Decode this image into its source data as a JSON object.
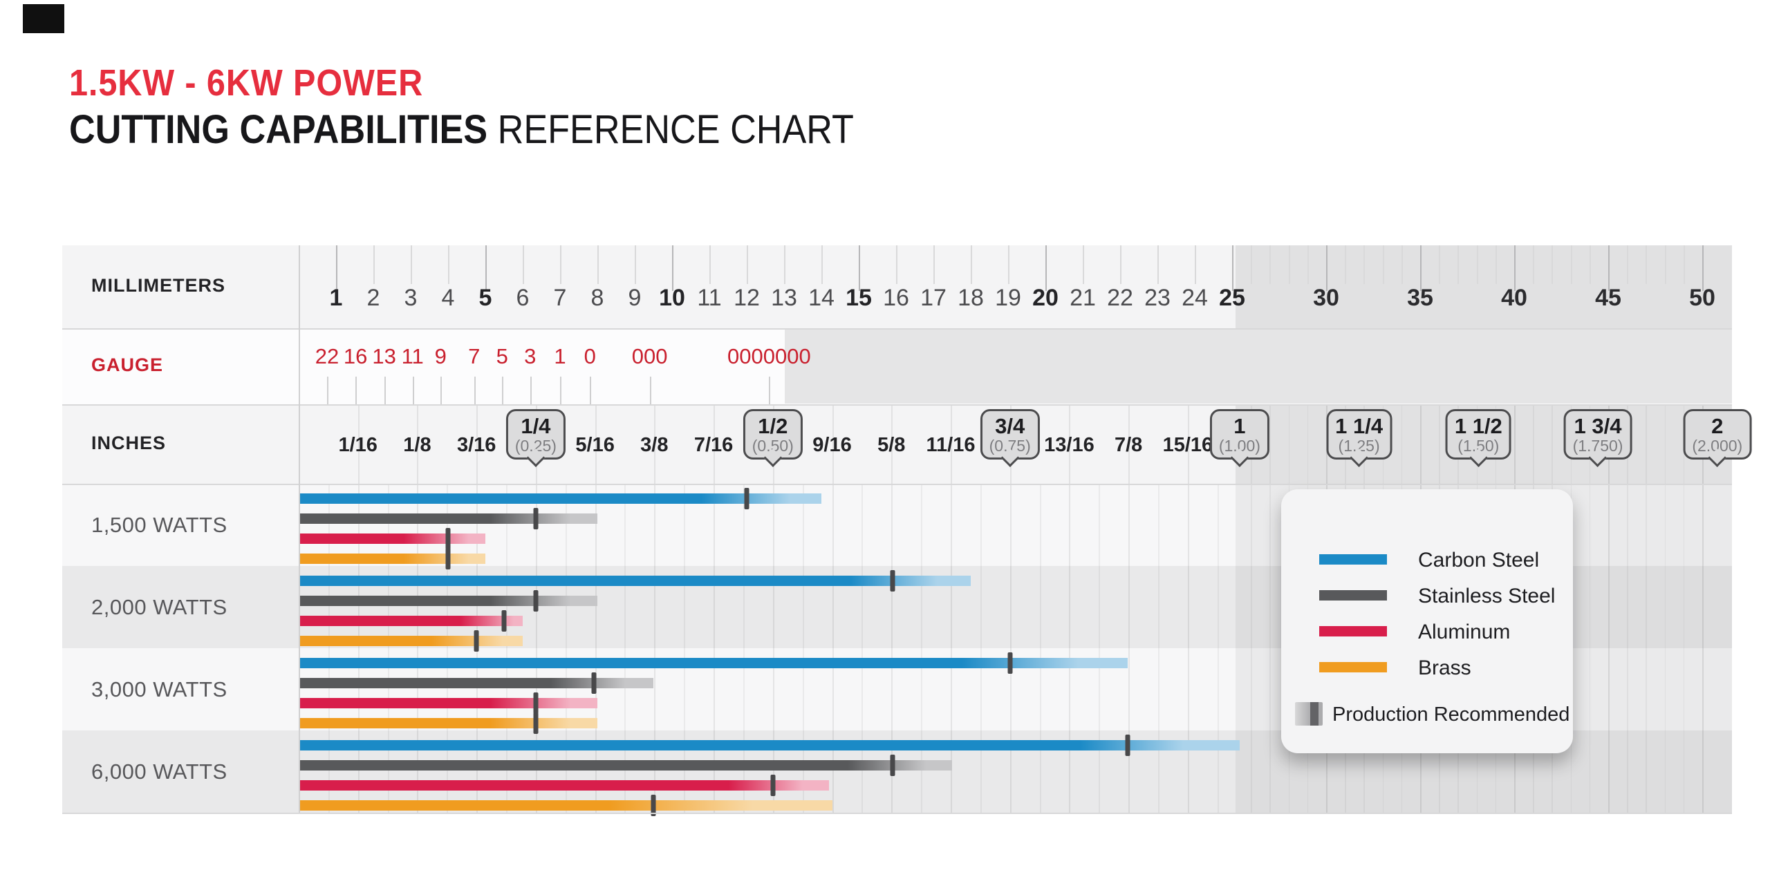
{
  "page": {
    "title_line1": "1.5KW - 6KW POWER",
    "title_line2_bold": "CUTTING CAPABILITIES",
    "title_line2_rest": " REFERENCE CHART"
  },
  "colors": {
    "title_red": "#e62e3e",
    "gauge_red": "#c9202e",
    "tick_dark": "#48484a",
    "carbon_steel": "#1b8ac6",
    "carbon_steel_light": "#abd3eb",
    "stainless_steel": "#58595b",
    "stainless_steel_light": "#c6c6c8",
    "aluminum": "#d81e4b",
    "aluminum_light": "#f3b3c4",
    "brass": "#f09c20",
    "brass_light": "#f8d9a6"
  },
  "header": {
    "millimeters": "MILLIMETERS",
    "gauge": "GAUGE",
    "inches": "INCHES"
  },
  "axis": {
    "mm_labels": [
      1,
      2,
      3,
      4,
      5,
      6,
      7,
      8,
      9,
      10,
      11,
      12,
      13,
      14,
      15,
      16,
      17,
      18,
      19,
      20,
      21,
      22,
      23,
      24,
      25,
      30,
      35,
      40,
      45,
      50
    ],
    "mm_bold": [
      1,
      5,
      10,
      15,
      20,
      25
    ],
    "mm_semi": [
      30,
      35,
      40,
      45,
      50
    ],
    "mm_compressed_after": 25,
    "gauge_items": [
      {
        "label": "22",
        "mm": 0.76
      },
      {
        "label": "16",
        "mm": 1.52
      },
      {
        "label": "13",
        "mm": 2.29
      },
      {
        "label": "11",
        "mm": 3.05
      },
      {
        "label": "9",
        "mm": 3.8
      },
      {
        "label": "7",
        "mm": 4.7
      },
      {
        "label": "5",
        "mm": 5.45
      },
      {
        "label": "3",
        "mm": 6.2
      },
      {
        "label": "1",
        "mm": 7.0
      },
      {
        "label": "0",
        "mm": 7.8
      },
      {
        "label": "000",
        "mm": 9.4
      },
      {
        "label": "0000000",
        "mm": 12.6
      }
    ],
    "inch_plain_labels": [
      {
        "n": 1,
        "label": "1/16"
      },
      {
        "n": 2,
        "label": "1/8"
      },
      {
        "n": 3,
        "label": "3/16"
      },
      {
        "n": 5,
        "label": "5/16"
      },
      {
        "n": 6,
        "label": "3/8"
      },
      {
        "n": 7,
        "label": "7/16"
      },
      {
        "n": 9,
        "label": "9/16"
      },
      {
        "n": 10,
        "label": "5/8"
      },
      {
        "n": 11,
        "label": "11/16"
      },
      {
        "n": 13,
        "label": "13/16"
      },
      {
        "n": 14,
        "label": "7/8"
      },
      {
        "n": 15,
        "label": "15/16"
      }
    ],
    "inch_callouts": [
      {
        "n": 4,
        "label": "1/4",
        "decimal": "(0.25)"
      },
      {
        "n": 8,
        "label": "1/2",
        "decimal": "(0.50)"
      },
      {
        "n": 12,
        "label": "3/4",
        "decimal": "(0.75)"
      },
      {
        "n": 16,
        "label": "1",
        "decimal": "(1.00)"
      },
      {
        "n": 20,
        "label": "1 1/4",
        "decimal": "(1.25)"
      },
      {
        "n": 24,
        "label": "1 1/2",
        "decimal": "(1.50)"
      },
      {
        "n": 28,
        "label": "1 3/4",
        "decimal": "(1.750)"
      },
      {
        "n": 32,
        "label": "2",
        "decimal": "(2.000)"
      }
    ]
  },
  "legend": {
    "items": [
      {
        "label": "Carbon Steel",
        "color": "#1b8ac6"
      },
      {
        "label": "Stainless Steel",
        "color": "#58595b"
      },
      {
        "label": "Aluminum",
        "color": "#d81e4b"
      },
      {
        "label": "Brass",
        "color": "#f09c20"
      }
    ],
    "production_label": "Production Recommended"
  },
  "chart_data": {
    "type": "bar",
    "orientation": "horizontal",
    "unit": "mm",
    "title": "1.5KW - 6KW POWER CUTTING CAPABILITIES REFERENCE CHART",
    "x_axis": {
      "mm_range": [
        0,
        50
      ],
      "linear_until_mm": 25,
      "note": "scale compressed beyond 25 mm"
    },
    "categories": [
      "1,500 WATTS",
      "2,000 WATTS",
      "3,000 WATTS",
      "6,000 WATTS"
    ],
    "series": [
      {
        "name": "Carbon Steel",
        "color": "#1b8ac6",
        "light": "#abd3eb",
        "bars": [
          {
            "production_mm": 12,
            "max_mm": 14
          },
          {
            "production_mm": 15.9,
            "max_mm": 18
          },
          {
            "production_mm": 19.05,
            "max_mm": 22.2
          },
          {
            "production_mm": 22.2,
            "max_mm": 25.4
          }
        ]
      },
      {
        "name": "Stainless Steel",
        "color": "#58595b",
        "light": "#c6c6c8",
        "bars": [
          {
            "production_mm": 6.35,
            "max_mm": 8
          },
          {
            "production_mm": 6.35,
            "max_mm": 8
          },
          {
            "production_mm": 7.9,
            "max_mm": 9.5
          },
          {
            "production_mm": 15.9,
            "max_mm": 17.5
          }
        ]
      },
      {
        "name": "Aluminum",
        "color": "#d81e4b",
        "light": "#f3b3c4",
        "bars": [
          {
            "production_mm": 4,
            "max_mm": 5
          },
          {
            "production_mm": 5.5,
            "max_mm": 6
          },
          {
            "production_mm": 6.35,
            "max_mm": 8
          },
          {
            "production_mm": 12.7,
            "max_mm": 14.2
          }
        ]
      },
      {
        "name": "Brass",
        "color": "#f09c20",
        "light": "#f8d9a6",
        "bars": [
          {
            "production_mm": 4,
            "max_mm": 5
          },
          {
            "production_mm": 4.76,
            "max_mm": 6
          },
          {
            "production_mm": 6.35,
            "max_mm": 8
          },
          {
            "production_mm": 9.5,
            "max_mm": 14.3
          }
        ]
      }
    ],
    "legend_position": "right-overlay"
  }
}
